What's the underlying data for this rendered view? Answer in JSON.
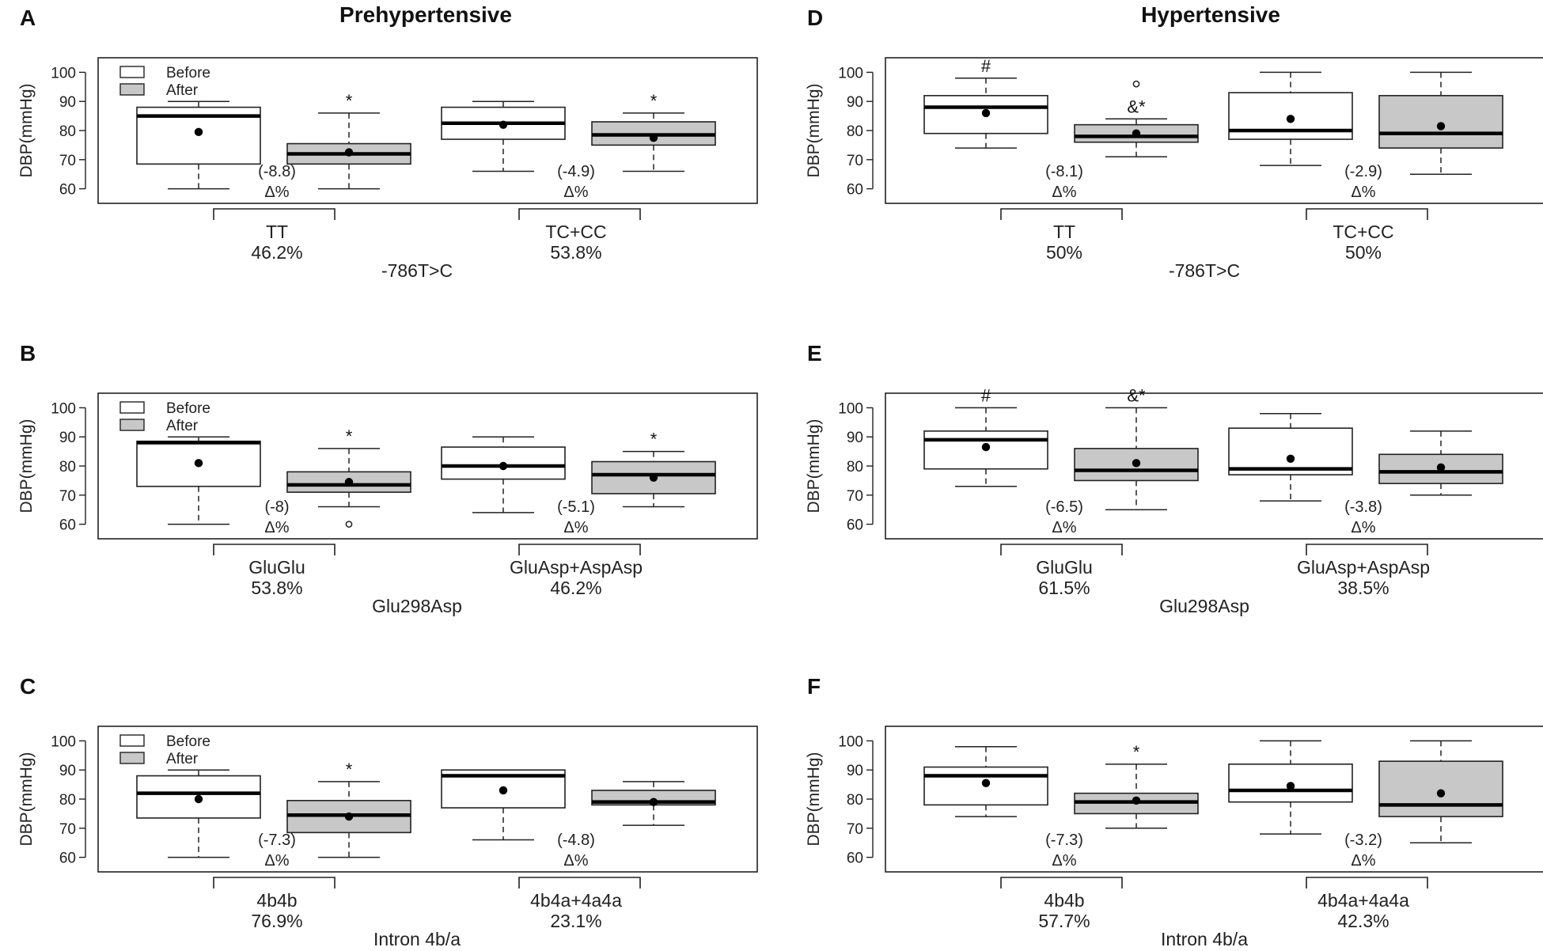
{
  "titles": {
    "left": "Prehypertensive",
    "right": "Hypertensive"
  },
  "colors": {
    "before_fill": "#ffffff",
    "after_fill": "#c8c8c8",
    "stroke": "#222222"
  },
  "chart_data": [
    {
      "panel": "A",
      "type": "box",
      "ylabel": "DBP(mmHg)",
      "ylim": [
        55,
        105
      ],
      "yticks": [
        60,
        70,
        80,
        90,
        100
      ],
      "legend": [
        "Before",
        "After"
      ],
      "gene": "-786T>C",
      "groups": [
        {
          "name": "TT",
          "pct": "46.2%",
          "delta": "(-8.8)",
          "delta_sym": "Δ%",
          "boxes": [
            {
              "series": "Before",
              "whislo": 60,
              "q1": 68.5,
              "median": 85,
              "q3": 88,
              "whishi": 90,
              "mean": 79.5,
              "outliers": [],
              "marker": ""
            },
            {
              "series": "After",
              "whislo": 60,
              "q1": 68.5,
              "median": 72,
              "q3": 75.5,
              "whishi": 86,
              "mean": 72.5,
              "outliers": [],
              "marker": "*"
            }
          ]
        },
        {
          "name": "TC+CC",
          "pct": "53.8%",
          "delta": "(-4.9)",
          "delta_sym": "Δ%",
          "boxes": [
            {
              "series": "Before",
              "whislo": 66,
              "q1": 77,
              "median": 82.5,
              "q3": 88,
              "whishi": 90,
              "mean": 82,
              "outliers": [],
              "marker": ""
            },
            {
              "series": "After",
              "whislo": 66,
              "q1": 75,
              "median": 78.5,
              "q3": 83,
              "whishi": 86,
              "mean": 77.5,
              "outliers": [],
              "marker": "*"
            }
          ]
        }
      ]
    },
    {
      "panel": "B",
      "type": "box",
      "ylabel": "DBP(mmHg)",
      "ylim": [
        55,
        105
      ],
      "yticks": [
        60,
        70,
        80,
        90,
        100
      ],
      "legend": [
        "Before",
        "After"
      ],
      "gene": "Glu298Asp",
      "groups": [
        {
          "name": "GluGlu",
          "pct": "53.8%",
          "delta": "(-8)",
          "delta_sym": "Δ%",
          "boxes": [
            {
              "series": "Before",
              "whislo": 60,
              "q1": 73,
              "median": 88,
              "q3": 88.5,
              "whishi": 90,
              "mean": 81,
              "outliers": [],
              "marker": ""
            },
            {
              "series": "After",
              "whislo": 66,
              "q1": 71,
              "median": 73.5,
              "q3": 78,
              "whishi": 86,
              "mean": 74.5,
              "outliers": [
                60
              ],
              "marker": "*"
            }
          ]
        },
        {
          "name": "GluAsp+AspAsp",
          "pct": "46.2%",
          "delta": "(-5.1)",
          "delta_sym": "Δ%",
          "boxes": [
            {
              "series": "Before",
              "whislo": 64,
              "q1": 75.5,
              "median": 80,
              "q3": 86.5,
              "whishi": 90,
              "mean": 80,
              "outliers": [],
              "marker": ""
            },
            {
              "series": "After",
              "whislo": 66,
              "q1": 70.5,
              "median": 77,
              "q3": 81.5,
              "whishi": 85,
              "mean": 76,
              "outliers": [],
              "marker": "*"
            }
          ]
        }
      ]
    },
    {
      "panel": "C",
      "type": "box",
      "ylabel": "DBP(mmHg)",
      "ylim": [
        55,
        105
      ],
      "yticks": [
        60,
        70,
        80,
        90,
        100
      ],
      "legend": [
        "Before",
        "After"
      ],
      "gene": "Intron 4b/a",
      "groups": [
        {
          "name": "4b4b",
          "pct": "76.9%",
          "delta": "(-7.3)",
          "delta_sym": "Δ%",
          "boxes": [
            {
              "series": "Before",
              "whislo": 60,
              "q1": 73.5,
              "median": 82,
              "q3": 88,
              "whishi": 90,
              "mean": 80,
              "outliers": [],
              "marker": ""
            },
            {
              "series": "After",
              "whislo": 60,
              "q1": 68.5,
              "median": 74.5,
              "q3": 79.5,
              "whishi": 86,
              "mean": 74,
              "outliers": [],
              "marker": "*"
            }
          ]
        },
        {
          "name": "4b4a+4a4a",
          "pct": "23.1%",
          "delta": "(-4.8)",
          "delta_sym": "Δ%",
          "boxes": [
            {
              "series": "Before",
              "whislo": 66,
              "q1": 77,
              "median": 88,
              "q3": 90,
              "whishi": 90,
              "mean": 83,
              "outliers": [],
              "marker": ""
            },
            {
              "series": "After",
              "whislo": 71,
              "q1": 78,
              "median": 79,
              "q3": 83,
              "whishi": 86,
              "mean": 79,
              "outliers": [],
              "marker": ""
            }
          ]
        }
      ]
    },
    {
      "panel": "D",
      "type": "box",
      "ylabel": "DBP(mmHg)",
      "ylim": [
        55,
        105
      ],
      "yticks": [
        60,
        70,
        80,
        90,
        100
      ],
      "legend": [],
      "gene": "-786T>C",
      "groups": [
        {
          "name": "TT",
          "pct": "50%",
          "delta": "(-8.1)",
          "delta_sym": "Δ%",
          "boxes": [
            {
              "series": "Before",
              "whislo": 74,
              "q1": 79,
              "median": 88,
              "q3": 92,
              "whishi": 98,
              "mean": 86,
              "outliers": [],
              "marker": "#"
            },
            {
              "series": "After",
              "whislo": 71,
              "q1": 76,
              "median": 78,
              "q3": 82,
              "whishi": 84,
              "mean": 79,
              "outliers": [
                96
              ],
              "marker": "&*"
            }
          ]
        },
        {
          "name": "TC+CC",
          "pct": "50%",
          "delta": "(-2.9)",
          "delta_sym": "Δ%",
          "boxes": [
            {
              "series": "Before",
              "whislo": 68,
              "q1": 77,
              "median": 80,
              "q3": 93,
              "whishi": 100,
              "mean": 84,
              "outliers": [],
              "marker": ""
            },
            {
              "series": "After",
              "whislo": 65,
              "q1": 74,
              "median": 79,
              "q3": 92,
              "whishi": 100,
              "mean": 81.5,
              "outliers": [],
              "marker": ""
            }
          ]
        }
      ]
    },
    {
      "panel": "E",
      "type": "box",
      "ylabel": "DBP(mmHg)",
      "ylim": [
        55,
        105
      ],
      "yticks": [
        60,
        70,
        80,
        90,
        100
      ],
      "legend": [],
      "gene": "Glu298Asp",
      "groups": [
        {
          "name": "GluGlu",
          "pct": "61.5%",
          "delta": "(-6.5)",
          "delta_sym": "Δ%",
          "boxes": [
            {
              "series": "Before",
              "whislo": 73,
              "q1": 79,
              "median": 89,
              "q3": 92,
              "whishi": 100,
              "mean": 86.5,
              "outliers": [],
              "marker": "#"
            },
            {
              "series": "After",
              "whislo": 65,
              "q1": 75,
              "median": 78.5,
              "q3": 86,
              "whishi": 100,
              "mean": 81,
              "outliers": [],
              "marker": "&*"
            }
          ]
        },
        {
          "name": "GluAsp+AspAsp",
          "pct": "38.5%",
          "delta": "(-3.8)",
          "delta_sym": "Δ%",
          "boxes": [
            {
              "series": "Before",
              "whislo": 68,
              "q1": 77,
              "median": 79,
              "q3": 93,
              "whishi": 98,
              "mean": 82.5,
              "outliers": [],
              "marker": ""
            },
            {
              "series": "After",
              "whislo": 70,
              "q1": 74,
              "median": 78,
              "q3": 84,
              "whishi": 92,
              "mean": 79.5,
              "outliers": [],
              "marker": ""
            }
          ]
        }
      ]
    },
    {
      "panel": "F",
      "type": "box",
      "ylabel": "DBP(mmHg)",
      "ylim": [
        55,
        105
      ],
      "yticks": [
        60,
        70,
        80,
        90,
        100
      ],
      "legend": [],
      "gene": "Intron 4b/a",
      "groups": [
        {
          "name": "4b4b",
          "pct": "57.7%",
          "delta": "(-7.3)",
          "delta_sym": "Δ%",
          "boxes": [
            {
              "series": "Before",
              "whislo": 74,
              "q1": 78,
              "median": 88,
              "q3": 91,
              "whishi": 98,
              "mean": 85.5,
              "outliers": [],
              "marker": ""
            },
            {
              "series": "After",
              "whislo": 70,
              "q1": 75,
              "median": 79,
              "q3": 82,
              "whishi": 92,
              "mean": 79.5,
              "outliers": [],
              "marker": "*"
            }
          ]
        },
        {
          "name": "4b4a+4a4a",
          "pct": "42.3%",
          "delta": "(-3.2)",
          "delta_sym": "Δ%",
          "boxes": [
            {
              "series": "Before",
              "whislo": 68,
              "q1": 79,
              "median": 83,
              "q3": 92,
              "whishi": 100,
              "mean": 84.5,
              "outliers": [],
              "marker": ""
            },
            {
              "series": "After",
              "whislo": 65,
              "q1": 74,
              "median": 78,
              "q3": 93,
              "whishi": 100,
              "mean": 82,
              "outliers": [],
              "marker": ""
            }
          ]
        }
      ]
    }
  ]
}
